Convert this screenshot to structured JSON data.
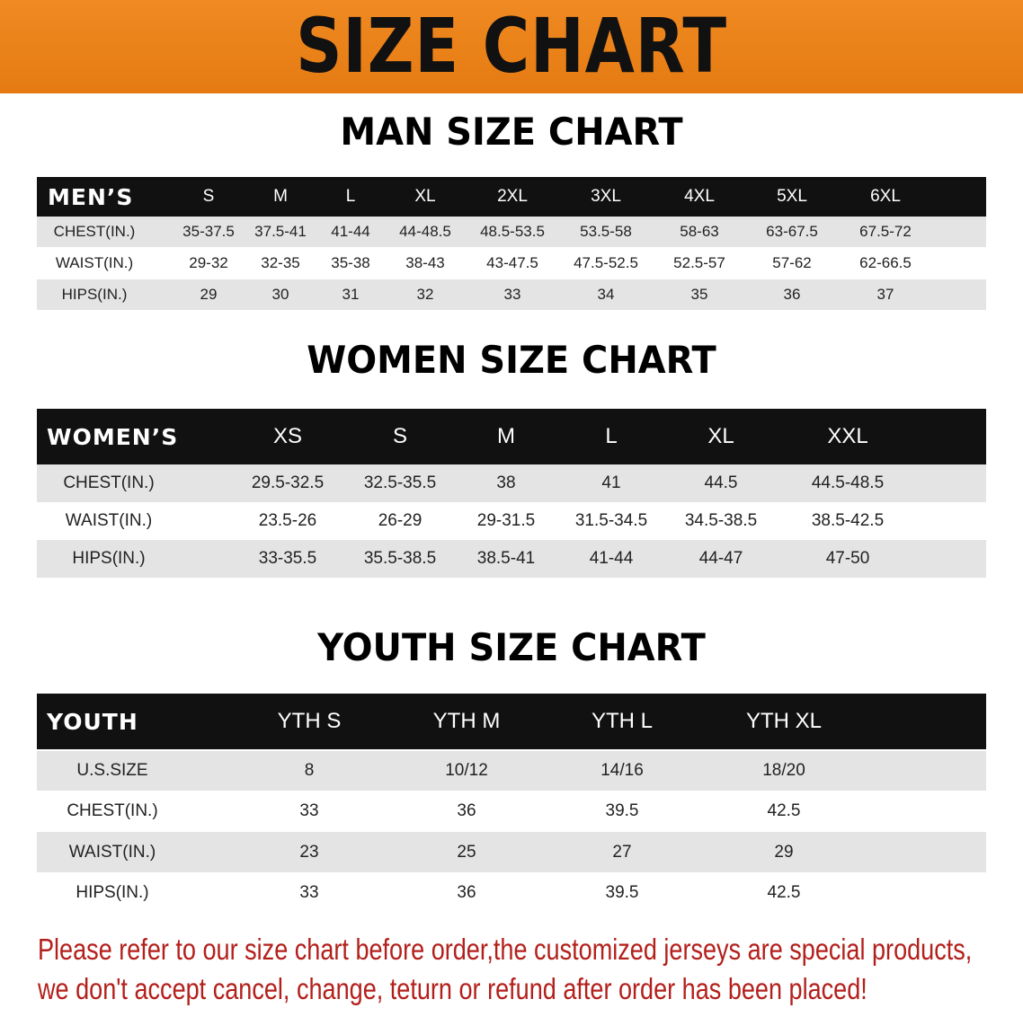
{
  "banner": {
    "title": "SIZE CHART",
    "color": "#ec8219"
  },
  "men": {
    "title": "MAN SIZE CHART",
    "header": [
      "MEN’S",
      "S",
      "M",
      "L",
      "XL",
      "2XL",
      "3XL",
      "4XL",
      "5XL",
      "6XL"
    ],
    "rows": [
      [
        "CHEST(IN.)",
        "35-37.5",
        "37.5-41",
        "41-44",
        "44-48.5",
        "48.5-53.5",
        "53.5-58",
        "58-63",
        "63-67.5",
        "67.5-72"
      ],
      [
        "WAIST(IN.)",
        "29-32",
        "32-35",
        "35-38",
        "38-43",
        "43-47.5",
        "47.5-52.5",
        "52.5-57",
        "57-62",
        "62-66.5"
      ],
      [
        "HIPS(IN.)",
        "29",
        "30",
        "31",
        "32",
        "33",
        "34",
        "35",
        "36",
        "37"
      ]
    ]
  },
  "women": {
    "title": "WOMEN SIZE CHART",
    "header": [
      "WOMEN’S",
      "XS",
      "S",
      "M",
      "L",
      "XL",
      "XXL"
    ],
    "rows": [
      [
        "CHEST(IN.)",
        "29.5-32.5",
        "32.5-35.5",
        "38",
        "41",
        "44.5",
        "44.5-48.5"
      ],
      [
        "WAIST(IN.)",
        "23.5-26",
        "26-29",
        "29-31.5",
        "31.5-34.5",
        "34.5-38.5",
        "38.5-42.5"
      ],
      [
        "HIPS(IN.)",
        "33-35.5",
        "35.5-38.5",
        "38.5-41",
        "41-44",
        "44-47",
        "47-50"
      ]
    ]
  },
  "youth": {
    "title": "YOUTH SIZE CHART",
    "header": [
      "YOUTH",
      "YTH S",
      "YTH M",
      "YTH L",
      "YTH XL"
    ],
    "rows": [
      [
        "U.S.SIZE",
        "8",
        "10/12",
        "14/16",
        "18/20"
      ],
      [
        "CHEST(IN.)",
        "33",
        "36",
        "39.5",
        "42.5"
      ],
      [
        "WAIST(IN.)",
        "23",
        "25",
        "27",
        "29"
      ],
      [
        "HIPS(IN.)",
        "33",
        "36",
        "39.5",
        "42.5"
      ]
    ]
  },
  "footer": {
    "line1": "Please refer to our size chart before order,the customized jerseys are special products,",
    "line2": "we don't accept cancel, change, teturn or refund after order has been placed!",
    "color": "#b3201c"
  }
}
